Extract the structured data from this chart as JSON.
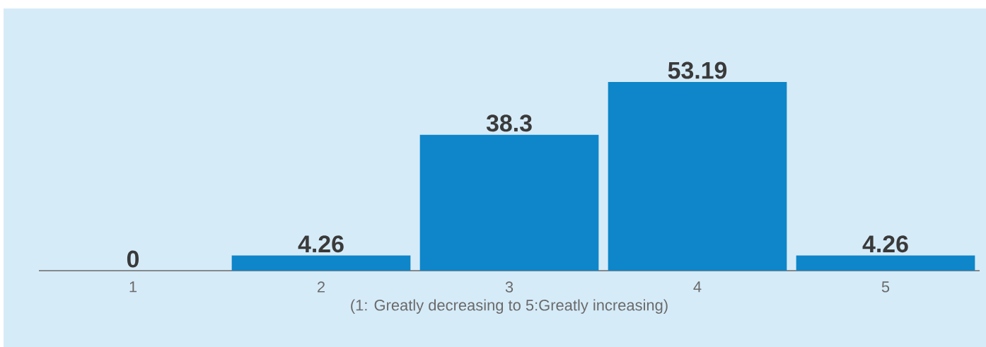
{
  "chart_data": {
    "type": "bar",
    "xlabel": "(1: Greatly decreasing to 5:Greatly increasing)",
    "categories": [
      "1",
      "2",
      "3",
      "4",
      "5"
    ],
    "values": [
      0,
      4.26,
      38.3,
      53.19,
      4.26
    ],
    "color": "#0e86c9",
    "data_labels": true
  }
}
